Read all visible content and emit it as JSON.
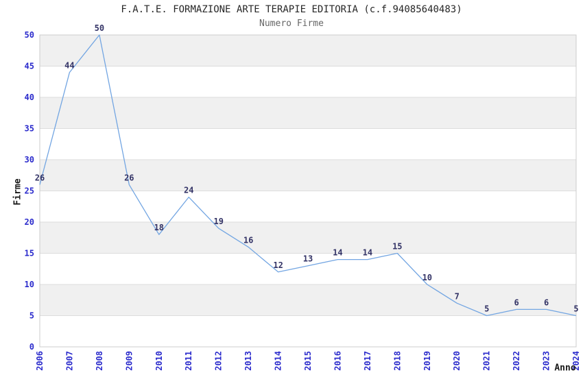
{
  "chart_data": {
    "type": "line",
    "title": "F.A.T.E. FORMAZIONE ARTE TERAPIE EDITORIA (c.f.94085640483)",
    "subtitle": "Numero Firme",
    "xlabel": "Anno",
    "ylabel": "Firme",
    "categories": [
      "2006",
      "2007",
      "2008",
      "2009",
      "2010",
      "2011",
      "2012",
      "2013",
      "2014",
      "2015",
      "2016",
      "2017",
      "2018",
      "2019",
      "2020",
      "2021",
      "2022",
      "2023",
      "2024"
    ],
    "series": [
      {
        "name": "Numero Firme",
        "values": [
          26,
          44,
          50,
          26,
          18,
          24,
          19,
          16,
          12,
          13,
          14,
          14,
          15,
          10,
          7,
          5,
          6,
          6,
          5
        ]
      }
    ],
    "ylim": [
      0,
      50
    ],
    "ytick_step": 5,
    "yticks": [
      0,
      5,
      10,
      15,
      20,
      25,
      30,
      35,
      40,
      45,
      50
    ],
    "grid": "horizontal-bands",
    "legend": "none",
    "show_point_labels": true,
    "colors": {
      "line": "#72a5e2",
      "tick_labels": "#2b2bcc",
      "point_labels": "#333366",
      "band": "#f0f0f0",
      "gridline": "#dcdcdc",
      "plot_border": "#cccccc",
      "title": "#262626",
      "subtitle": "#666666",
      "axis_titles": "#1a1a1a",
      "background": "#ffffff"
    }
  }
}
